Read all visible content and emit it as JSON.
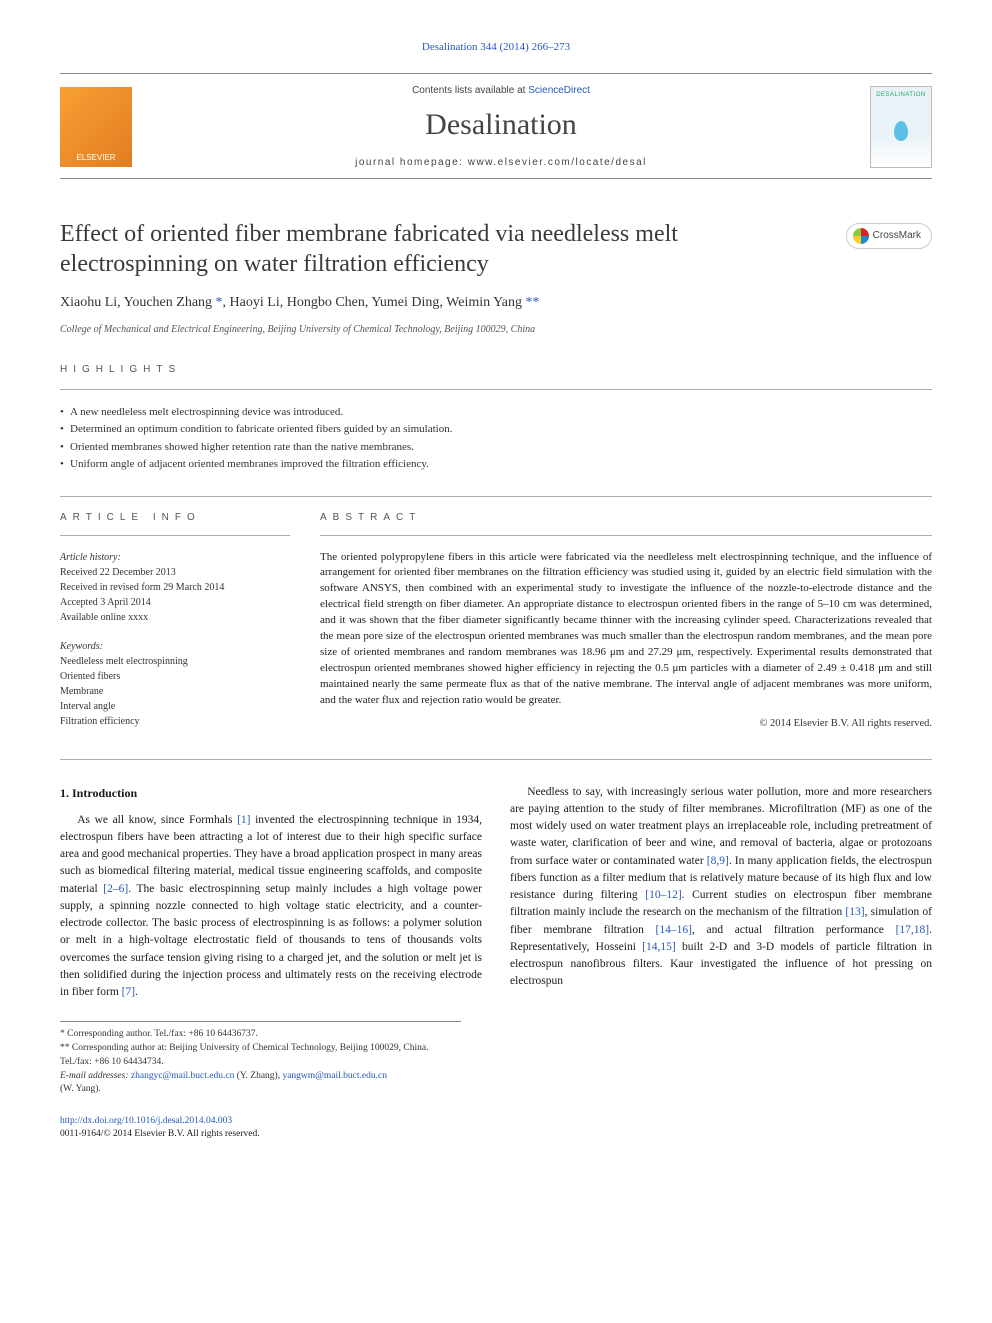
{
  "top_citation": "Desalination 344 (2014) 266–273",
  "banner": {
    "cla_prefix": "Contents lists available at ",
    "cla_link": "ScienceDirect",
    "journal": "Desalination",
    "homepage_label": "journal homepage: www.elsevier.com/locate/desal",
    "publisher_logo_text": "ELSEVIER",
    "cover_label": "DESALINATION"
  },
  "title": "Effect of oriented fiber membrane fabricated via needleless melt electrospinning on water filtration efficiency",
  "crossmark": "CrossMark",
  "authors_html": "Xiaohu Li, Youchen Zhang <span class='ast'>*</span>, Haoyi Li, Hongbo Chen, Yumei Ding, Weimin Yang <span class='ast'>**</span>",
  "affiliation": "College of Mechanical and Electrical Engineering, Beijing University of Chemical Technology, Beijing 100029, China",
  "highlights": {
    "heading": "HIGHLIGHTS",
    "items": [
      "A new needleless melt electrospinning device was introduced.",
      "Determined an optimum condition to fabricate oriented fibers guided by an simulation.",
      "Oriented membranes showed higher retention rate than the native membranes.",
      "Uniform angle of adjacent oriented membranes improved the filtration efficiency."
    ]
  },
  "article_info": {
    "heading": "ARTICLE INFO",
    "history_label": "Article history:",
    "history": [
      "Received 22 December 2013",
      "Received in revised form 29 March 2014",
      "Accepted 3 April 2014",
      "Available online xxxx"
    ],
    "keywords_label": "Keywords:",
    "keywords": [
      "Needleless melt electrospinning",
      "Oriented fibers",
      "Membrane",
      "Interval angle",
      "Filtration efficiency"
    ]
  },
  "abstract": {
    "heading": "ABSTRACT",
    "text": "The oriented polypropylene fibers in this article were fabricated via the needleless melt electrospinning technique, and the influence of arrangement for oriented fiber membranes on the filtration efficiency was studied using it, guided by an electric field simulation with the software ANSYS, then combined with an experimental study to investigate the influence of the nozzle-to-electrode distance and the electrical field strength on fiber diameter. An appropriate distance to electrospun oriented fibers in the range of 5–10 cm was determined, and it was shown that the fiber diameter significantly became thinner with the increasing cylinder speed. Characterizations revealed that the mean pore size of the electrospun oriented membranes was much smaller than the electrospun random membranes, and the mean pore size of oriented membranes and random membranes was 18.96 μm and 27.29 μm, respectively. Experimental results demonstrated that electrospun oriented membranes showed higher efficiency in rejecting the 0.5 μm particles with a diameter of 2.49 ± 0.418 μm and still maintained nearly the same permeate flux as that of the native membrane. The interval angle of adjacent membranes was more uniform, and the water flux and rejection ratio would be greater.",
    "copyright": "© 2014 Elsevier B.V. All rights reserved."
  },
  "body": {
    "intro_heading": "1. Introduction",
    "p1_a": "As we all know, since Formhals ",
    "p1_c1": "[1]",
    "p1_b": " invented the electrospinning technique in 1934, electrospun fibers have been attracting a lot of interest due to their high specific surface area and good mechanical properties. They have a broad application prospect in many areas such as biomedical filtering material, medical tissue engineering scaffolds, and composite material ",
    "p1_c2": "[2–6]",
    "p1_c": ". The basic electrospinning setup mainly includes a high voltage power supply, a spinning nozzle connected to high voltage static electricity, and a counter-electrode collector. The basic process of electrospinning is as follows: a polymer solution or melt in a high-voltage electrostatic field of thousands to tens of thousands volts overcomes the surface tension giving rising to a charged jet, and the solution or melt jet is then solidified during the injection process and ultimately rests on the receiving electrode in fiber form ",
    "p1_c3": "[7]",
    "p1_d": ".",
    "p2_a": "Needless to say, with increasingly serious water pollution, more and more researchers are paying attention to the study of filter membranes. Microfiltration (MF) as one of the most widely used on water treatment plays an irreplaceable role, including pretreatment of waste water, clarification of beer and wine, and removal of bacteria, algae or protozoans from surface water or contaminated water ",
    "p2_c1": "[8,9]",
    "p2_b": ". In many application fields, the electrospun fibers function as a filter medium that is relatively mature because of its high flux and low resistance during filtering ",
    "p2_c2": "[10–12]",
    "p2_c": ". Current studies on electrospun fiber membrane filtration mainly include the research on the mechanism of the filtration ",
    "p2_c3": "[13]",
    "p2_d": ", simulation of fiber membrane filtration ",
    "p2_c4": "[14–16]",
    "p2_e": ", and actual filtration performance ",
    "p2_c5": "[17,18]",
    "p2_f": ". Representatively, Hosseini ",
    "p2_c6": "[14,15]",
    "p2_g": " built 2-D and 3-D models of particle filtration in electrospun nanofibrous filters. Kaur investigated the influence of hot pressing on electrospun"
  },
  "footnotes": {
    "f1": "* Corresponding author. Tel./fax: +86 10 64436737.",
    "f2": "** Corresponding author at: Beijing University of Chemical Technology, Beijing 100029, China. Tel./fax: +86 10 64434734.",
    "email_label": "E-mail addresses: ",
    "email1": "zhangyc@mail.buct.edu.cn",
    "email1_who": " (Y. Zhang), ",
    "email2": "yangwm@mail.buct.edu.cn",
    "email2_who": " (W. Yang)."
  },
  "doi": {
    "url": "http://dx.doi.org/10.1016/j.desal.2014.04.003",
    "issn_line": "0011-9164/© 2014 Elsevier B.V. All rights reserved."
  },
  "colors": {
    "link": "#2757b8",
    "text": "#1a1a1a",
    "muted": "#555555",
    "rule": "#aaaaaa"
  }
}
